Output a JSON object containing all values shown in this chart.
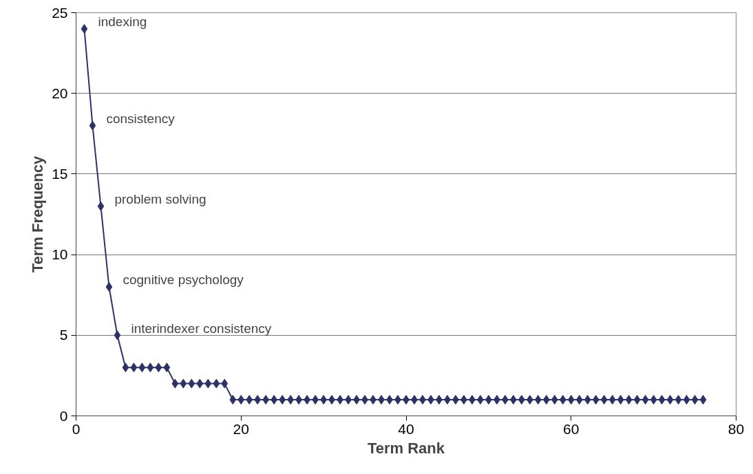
{
  "chart_data": {
    "type": "line",
    "xlabel": "Term Rank",
    "ylabel": "Term Frequency",
    "x": [
      1,
      2,
      3,
      4,
      5,
      6,
      7,
      8,
      9,
      10,
      11,
      12,
      13,
      14,
      15,
      16,
      17,
      18,
      19,
      20,
      21,
      22,
      23,
      24,
      25,
      26,
      27,
      28,
      29,
      30,
      31,
      32,
      33,
      34,
      35,
      36,
      37,
      38,
      39,
      40,
      41,
      42,
      43,
      44,
      45,
      46,
      47,
      48,
      49,
      50,
      51,
      52,
      53,
      54,
      55,
      56,
      57,
      58,
      59,
      60,
      61,
      62,
      63,
      64,
      65,
      66,
      67,
      68,
      69,
      70,
      71,
      72,
      73,
      74,
      75,
      76
    ],
    "series": [
      {
        "color": "#2e3166",
        "values": [
          24,
          18,
          13,
          8,
          5,
          3,
          3,
          3,
          3,
          3,
          3,
          2,
          2,
          2,
          2,
          2,
          2,
          2,
          1,
          1,
          1,
          1,
          1,
          1,
          1,
          1,
          1,
          1,
          1,
          1,
          1,
          1,
          1,
          1,
          1,
          1,
          1,
          1,
          1,
          1,
          1,
          1,
          1,
          1,
          1,
          1,
          1,
          1,
          1,
          1,
          1,
          1,
          1,
          1,
          1,
          1,
          1,
          1,
          1,
          1,
          1,
          1,
          1,
          1,
          1,
          1,
          1,
          1,
          1,
          1,
          1,
          1,
          1,
          1,
          1,
          1
        ]
      }
    ],
    "xlim": [
      0,
      80
    ],
    "xticks": [
      0,
      20,
      40,
      60,
      80
    ],
    "ylim": [
      0,
      25
    ],
    "yticks": [
      0,
      5,
      10,
      15,
      20,
      25
    ],
    "grid": "y",
    "marker": "diamond",
    "line_style": "solid",
    "annotations": [
      {
        "text": "indexing",
        "x": 1,
        "y": 24
      },
      {
        "text": "consistency",
        "x": 2,
        "y": 18
      },
      {
        "text": "problem solving",
        "x": 3,
        "y": 13
      },
      {
        "text": "cognitive psychology",
        "x": 4,
        "y": 8
      },
      {
        "text": "interindexer consistency",
        "x": 5,
        "y": 5
      }
    ]
  }
}
